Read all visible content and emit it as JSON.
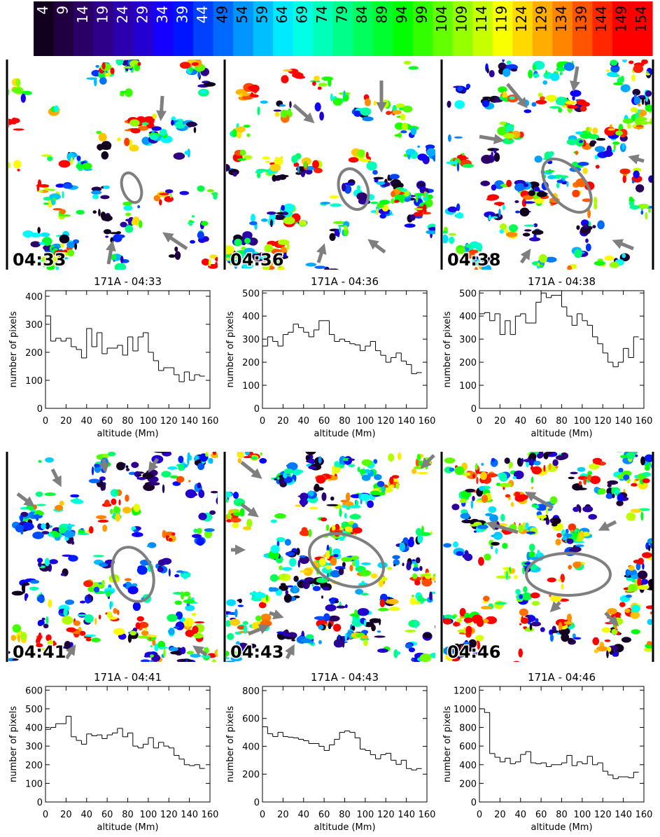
{
  "colorbar": {
    "ticks": [
      4,
      9,
      14,
      19,
      24,
      29,
      34,
      39,
      44,
      49,
      54,
      59,
      64,
      69,
      74,
      79,
      84,
      89,
      94,
      99,
      104,
      109,
      114,
      119,
      124,
      129,
      134,
      139,
      144,
      149,
      154
    ]
  },
  "maps": [
    {
      "time": "04:33"
    },
    {
      "time": "04:36"
    },
    {
      "time": "04:38"
    },
    {
      "time": "04:41"
    },
    {
      "time": "04:43"
    },
    {
      "time": "04:46"
    }
  ],
  "chart_data": [
    {
      "type": "histogram",
      "title": "171A - 04:33",
      "xlabel": "altitude (Mm)",
      "ylabel": "number of pixels",
      "color": "#000000",
      "bins": [
        0,
        5,
        10,
        15,
        20,
        25,
        30,
        35,
        40,
        45,
        50,
        55,
        60,
        65,
        70,
        75,
        80,
        85,
        90,
        95,
        100,
        105,
        110,
        115,
        120,
        125,
        130,
        135,
        140,
        145,
        150,
        155
      ],
      "values": [
        330,
        240,
        250,
        240,
        250,
        220,
        210,
        180,
        285,
        220,
        270,
        195,
        215,
        215,
        225,
        190,
        255,
        205,
        255,
        270,
        200,
        170,
        135,
        145,
        145,
        120,
        95,
        130,
        100,
        120,
        115
      ],
      "xlim": [
        0,
        160
      ],
      "xticks": [
        0,
        20,
        40,
        60,
        80,
        100,
        120,
        140,
        160
      ],
      "ylim": [
        0,
        420
      ],
      "yticks": [
        0,
        100,
        200,
        300,
        400
      ]
    },
    {
      "type": "histogram",
      "title": "171A - 04:36",
      "xlabel": "altitude (Mm)",
      "ylabel": "number of pixels",
      "color": "#000000",
      "bins": [
        0,
        5,
        10,
        15,
        20,
        25,
        30,
        35,
        40,
        45,
        50,
        55,
        60,
        65,
        70,
        75,
        80,
        85,
        90,
        95,
        100,
        105,
        110,
        115,
        120,
        125,
        130,
        135,
        140,
        145,
        150,
        155
      ],
      "values": [
        270,
        310,
        290,
        270,
        320,
        330,
        365,
        350,
        330,
        310,
        340,
        380,
        380,
        320,
        290,
        300,
        290,
        280,
        275,
        250,
        270,
        290,
        250,
        230,
        200,
        220,
        240,
        205,
        190,
        150,
        155
      ],
      "xlim": [
        0,
        160
      ],
      "xticks": [
        0,
        20,
        40,
        60,
        80,
        100,
        120,
        140,
        160
      ],
      "ylim": [
        0,
        510
      ],
      "yticks": [
        0,
        100,
        200,
        300,
        400,
        500
      ]
    },
    {
      "type": "histogram",
      "title": "171A - 04:38",
      "xlabel": "altitude (Mm)",
      "ylabel": "number of pixels",
      "color": "#000000",
      "bins": [
        0,
        5,
        10,
        15,
        20,
        25,
        30,
        35,
        40,
        45,
        50,
        55,
        60,
        65,
        70,
        75,
        80,
        85,
        90,
        95,
        100,
        105,
        110,
        115,
        120,
        125,
        130,
        135,
        140,
        145,
        150,
        155
      ],
      "values": [
        410,
        415,
        380,
        410,
        320,
        380,
        320,
        400,
        410,
        370,
        370,
        460,
        500,
        480,
        490,
        490,
        440,
        400,
        360,
        410,
        380,
        360,
        310,
        280,
        240,
        200,
        180,
        200,
        260,
        220,
        310
      ],
      "xlim": [
        0,
        160
      ],
      "xticks": [
        0,
        20,
        40,
        60,
        80,
        100,
        120,
        140,
        160
      ],
      "ylim": [
        0,
        510
      ],
      "yticks": [
        0,
        100,
        200,
        300,
        400,
        500
      ]
    },
    {
      "type": "histogram",
      "title": "171A - 04:41",
      "xlabel": "altitude (Mm)",
      "ylabel": "number of pixels",
      "color": "#000000",
      "bins": [
        0,
        5,
        10,
        15,
        20,
        25,
        30,
        35,
        40,
        45,
        50,
        55,
        60,
        65,
        70,
        75,
        80,
        85,
        90,
        95,
        100,
        105,
        110,
        115,
        120,
        125,
        130,
        135,
        140,
        145,
        150,
        155
      ],
      "values": [
        390,
        400,
        420,
        420,
        460,
        350,
        330,
        310,
        365,
        355,
        360,
        340,
        360,
        370,
        395,
        350,
        370,
        300,
        290,
        310,
        345,
        290,
        320,
        300,
        290,
        250,
        230,
        200,
        195,
        200,
        180
      ],
      "xlim": [
        0,
        160
      ],
      "xticks": [
        0,
        20,
        40,
        60,
        80,
        100,
        120,
        140,
        160
      ],
      "ylim": [
        0,
        620
      ],
      "yticks": [
        0,
        100,
        200,
        300,
        400,
        500,
        600
      ]
    },
    {
      "type": "histogram",
      "title": "171A - 04:43",
      "xlabel": "altitude (Mm)",
      "ylabel": "number of pixels",
      "color": "#000000",
      "bins": [
        0,
        5,
        10,
        15,
        20,
        25,
        30,
        35,
        40,
        45,
        50,
        55,
        60,
        65,
        70,
        75,
        80,
        85,
        90,
        95,
        100,
        105,
        110,
        115,
        120,
        125,
        130,
        135,
        140,
        145,
        150,
        155
      ],
      "values": [
        540,
        490,
        470,
        500,
        470,
        465,
        460,
        450,
        440,
        420,
        420,
        400,
        370,
        410,
        450,
        500,
        510,
        500,
        460,
        380,
        370,
        340,
        310,
        340,
        350,
        300,
        270,
        300,
        240,
        230,
        240
      ],
      "xlim": [
        0,
        160
      ],
      "xticks": [
        0,
        20,
        40,
        60,
        80,
        100,
        120,
        140,
        160
      ],
      "ylim": [
        0,
        830
      ],
      "yticks": [
        0,
        200,
        400,
        600,
        800
      ]
    },
    {
      "type": "histogram",
      "title": "171A - 04:46",
      "xlabel": "altitude (Mm)",
      "ylabel": "number of pixels",
      "color": "#000000",
      "bins": [
        0,
        5,
        10,
        15,
        20,
        25,
        30,
        35,
        40,
        45,
        50,
        55,
        60,
        65,
        70,
        75,
        80,
        85,
        90,
        95,
        100,
        105,
        110,
        115,
        120,
        125,
        130,
        135,
        140,
        145,
        150,
        155
      ],
      "values": [
        1000,
        960,
        520,
        480,
        430,
        470,
        410,
        430,
        510,
        540,
        420,
        410,
        420,
        380,
        400,
        400,
        420,
        500,
        390,
        430,
        410,
        490,
        400,
        420,
        330,
        290,
        250,
        270,
        270,
        260,
        320
      ],
      "xlim": [
        0,
        160
      ],
      "xticks": [
        0,
        20,
        40,
        60,
        80,
        100,
        120,
        140,
        160
      ],
      "ylim": [
        0,
        1240
      ],
      "yticks": [
        0,
        200,
        400,
        600,
        800,
        1000,
        1200
      ]
    }
  ]
}
